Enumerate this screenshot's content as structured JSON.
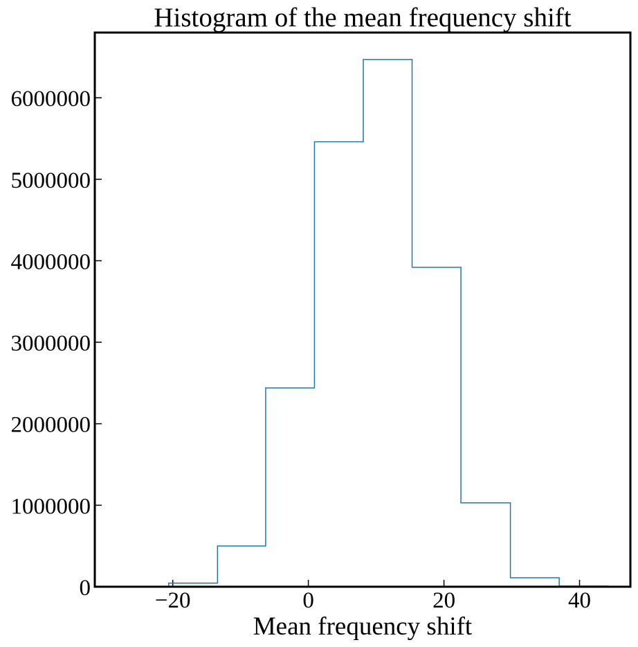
{
  "chart_data": {
    "type": "histogram",
    "title": "Histogram of the mean frequency shift",
    "xlabel": "Mean frequency shift",
    "ylabel": "",
    "xlim": [
      -31.5,
      47.5
    ],
    "ylim": [
      0,
      6800000
    ],
    "xticks": [
      -20,
      0,
      20,
      40
    ],
    "xtick_labels": [
      "−20",
      "0",
      "20",
      "40"
    ],
    "yticks": [
      0,
      1000000,
      2000000,
      3000000,
      4000000,
      5000000,
      6000000
    ],
    "ytick_labels": [
      "0",
      "1000000",
      "2000000",
      "3000000",
      "4000000",
      "5000000",
      "6000000"
    ],
    "bin_edges": [
      -20.6,
      -13.4,
      -6.3,
      0.9,
      8.1,
      15.3,
      22.5,
      29.8,
      37.0,
      44.2
    ],
    "counts": [
      45000,
      500000,
      2440000,
      5460000,
      6470000,
      3920000,
      1030000,
      110000,
      8000
    ],
    "line_color": "#1f77b4",
    "grid": false,
    "legend": "none"
  }
}
